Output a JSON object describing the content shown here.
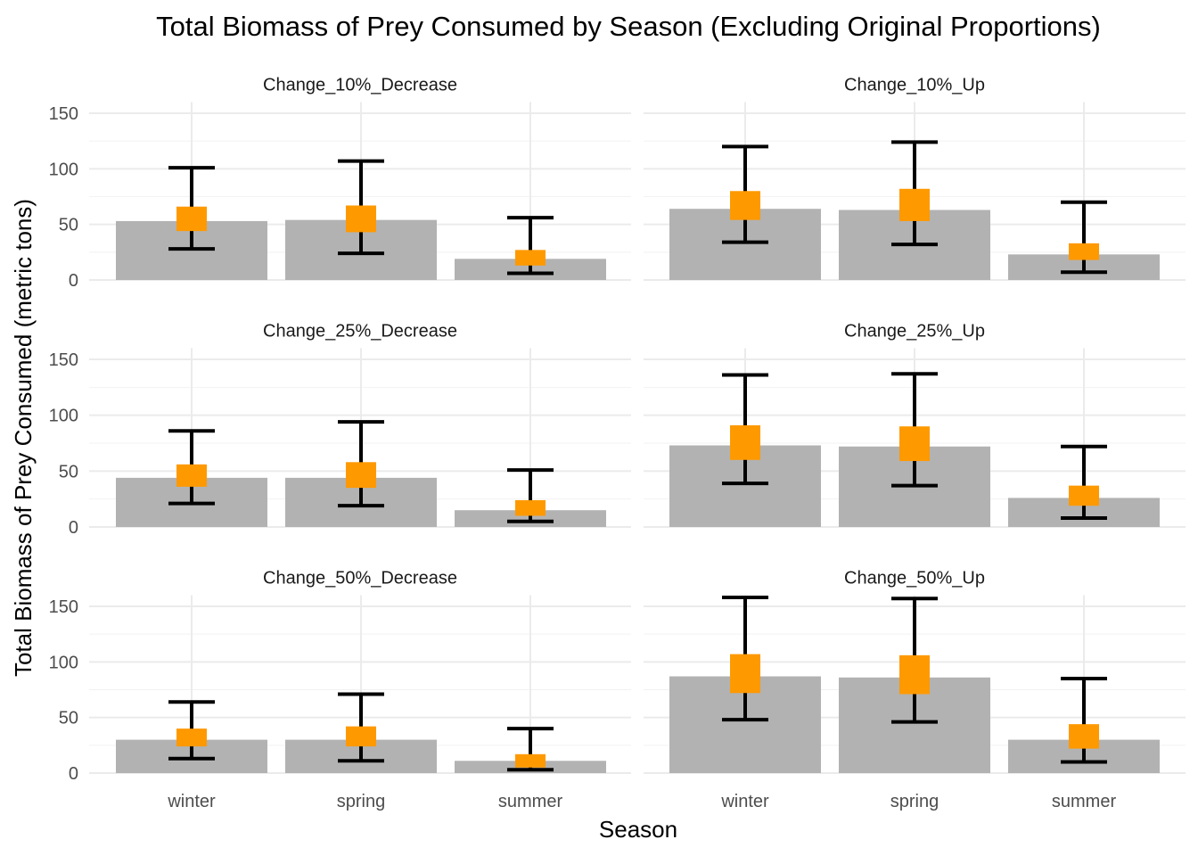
{
  "chart_data": {
    "type": "bar",
    "title": "Total Biomass of Prey Consumed by Season (Excluding Original Proportions)",
    "xlabel": "Season",
    "ylabel": "Total Biomass of Prey Consumed (metric tons)",
    "categories": [
      "winter",
      "spring",
      "summer"
    ],
    "ylim": [
      0,
      160
    ],
    "yticks": [
      0,
      50,
      100,
      150
    ],
    "grid": true,
    "layout": "facet grid, 3 rows x 2 columns",
    "colors": {
      "bar": "#b2b2b2",
      "point": "#ff9900",
      "errorbar": "#000000",
      "grid": "#ebebeb"
    },
    "panels": [
      {
        "label": "Change_10%_Decrease",
        "bar": [
          53,
          54,
          19
        ],
        "median": [
          55,
          55,
          20
        ],
        "q25": [
          44,
          43,
          13
        ],
        "q75": [
          66,
          67,
          27
        ],
        "lower": [
          28,
          24,
          6
        ],
        "upper": [
          101,
          107,
          56
        ]
      },
      {
        "label": "Change_10%_Up",
        "bar": [
          64,
          63,
          23
        ],
        "median": [
          67,
          68,
          25
        ],
        "q25": [
          54,
          53,
          18
        ],
        "q75": [
          80,
          82,
          33
        ],
        "lower": [
          34,
          32,
          7
        ],
        "upper": [
          120,
          124,
          70
        ]
      },
      {
        "label": "Change_25%_Decrease",
        "bar": [
          44,
          44,
          15
        ],
        "median": [
          46,
          46,
          16
        ],
        "q25": [
          36,
          35,
          10
        ],
        "q75": [
          56,
          58,
          24
        ],
        "lower": [
          21,
          19,
          5
        ],
        "upper": [
          86,
          94,
          51
        ]
      },
      {
        "label": "Change_25%_Up",
        "bar": [
          73,
          72,
          26
        ],
        "median": [
          76,
          75,
          28
        ],
        "q25": [
          60,
          59,
          19
        ],
        "q75": [
          91,
          90,
          37
        ],
        "lower": [
          39,
          37,
          8
        ],
        "upper": [
          136,
          137,
          72
        ]
      },
      {
        "label": "Change_50%_Decrease",
        "bar": [
          30,
          30,
          11
        ],
        "median": [
          32,
          32,
          10
        ],
        "q25": [
          24,
          24,
          5
        ],
        "q75": [
          40,
          42,
          17
        ],
        "lower": [
          13,
          11,
          3
        ],
        "upper": [
          64,
          71,
          40
        ]
      },
      {
        "label": "Change_50%_Up",
        "bar": [
          87,
          86,
          30
        ],
        "median": [
          90,
          89,
          32
        ],
        "q25": [
          72,
          71,
          22
        ],
        "q75": [
          107,
          106,
          44
        ],
        "lower": [
          48,
          46,
          10
        ],
        "upper": [
          158,
          157,
          85
        ]
      }
    ]
  }
}
